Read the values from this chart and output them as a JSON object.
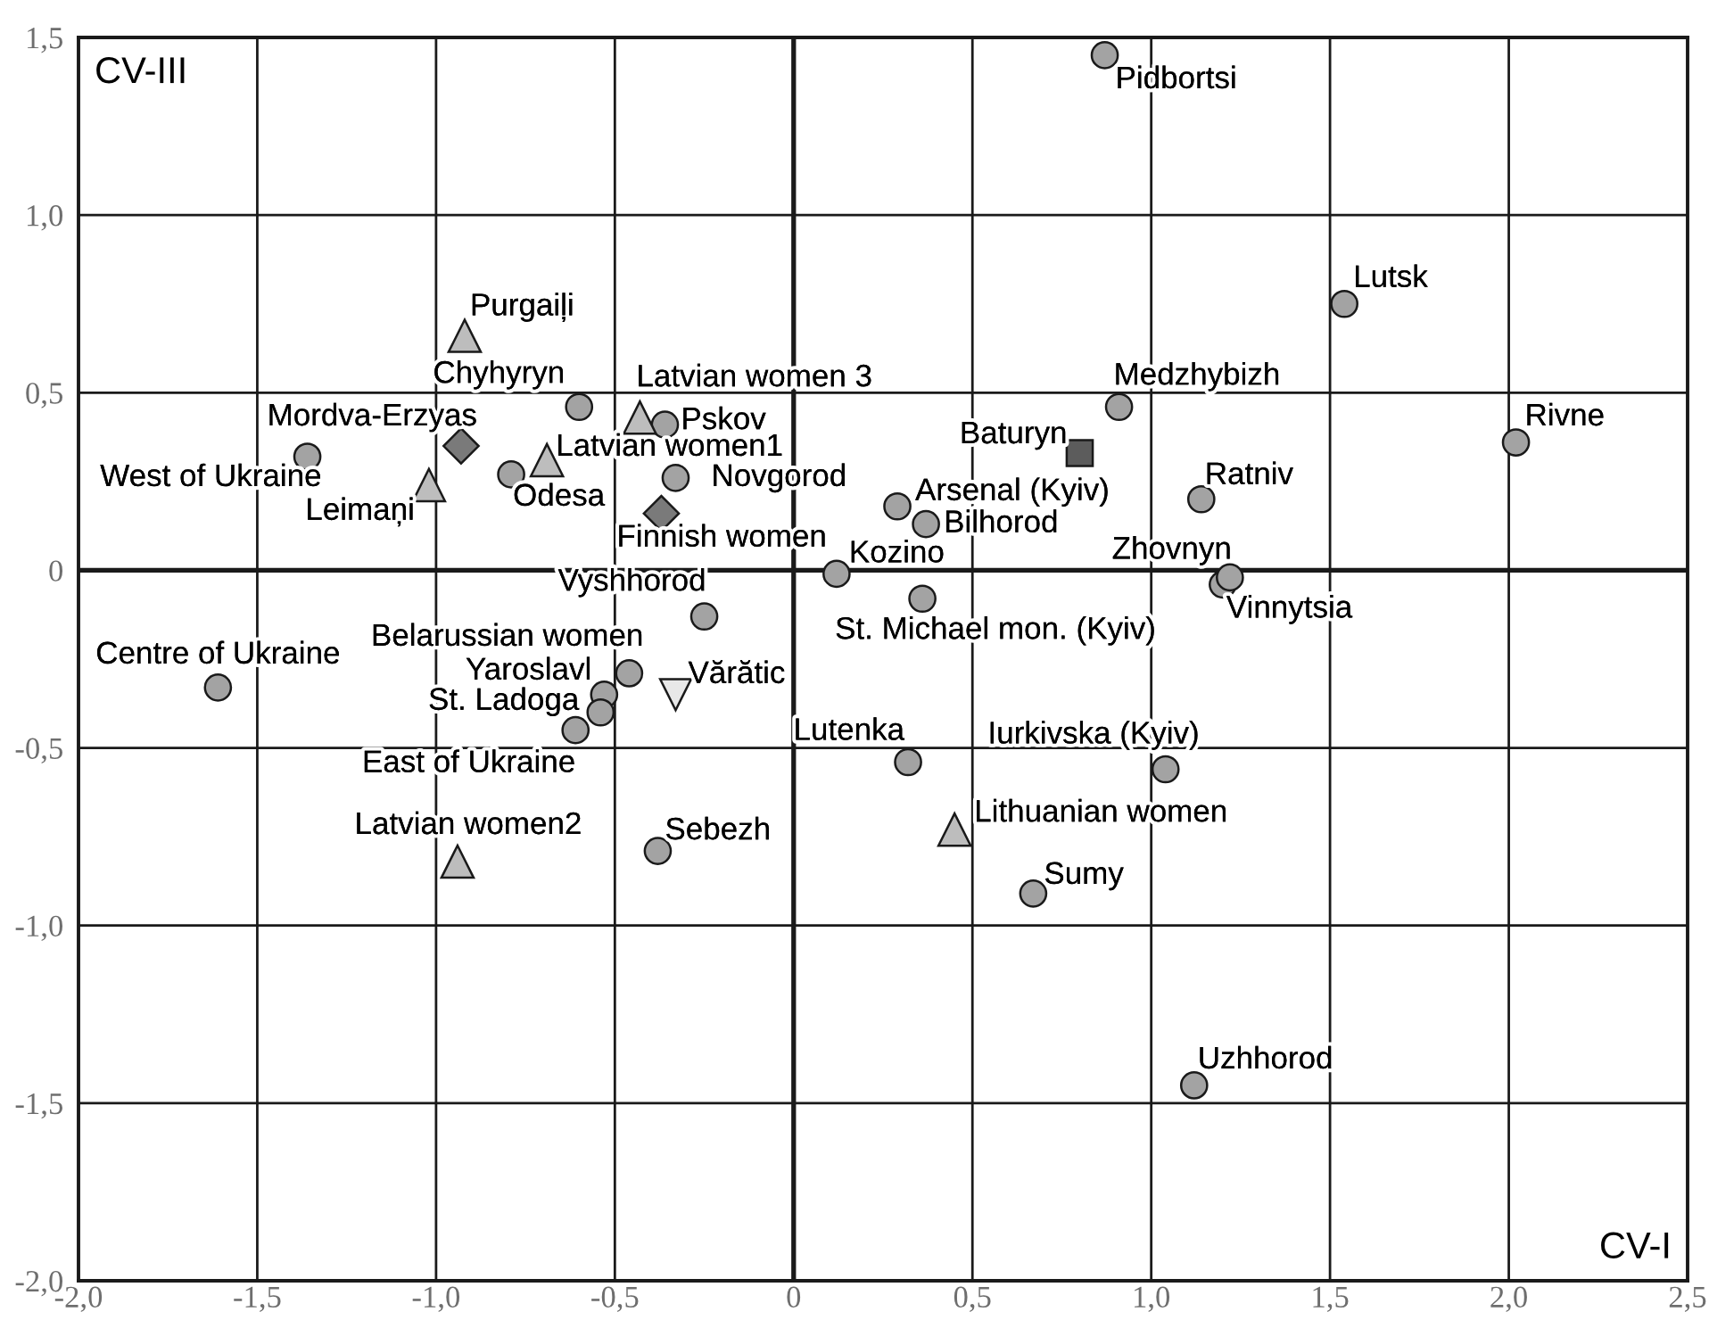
{
  "chart_data": {
    "type": "scatter",
    "xlabel": "CV-I",
    "ylabel": "CV-III",
    "xlim": [
      -2.0,
      2.5
    ],
    "ylim": [
      -2.0,
      1.5
    ],
    "xticks": [
      {
        "value": -2.0,
        "label": "-2,0"
      },
      {
        "value": -1.5,
        "label": "-1,5"
      },
      {
        "value": -1.0,
        "label": "-1,0"
      },
      {
        "value": -0.5,
        "label": "-0,5"
      },
      0,
      {
        "value": 0.5,
        "label": "0,5"
      },
      {
        "value": 1.0,
        "label": "1,0"
      },
      {
        "value": 1.5,
        "label": "1,5"
      },
      {
        "value": 2.0,
        "label": "2,0"
      },
      {
        "value": 2.5,
        "label": "2,5"
      }
    ],
    "yticks": [
      {
        "value": -2.0,
        "label": "-2,0"
      },
      {
        "value": -1.5,
        "label": "-1,5"
      },
      {
        "value": -1.0,
        "label": "-1,0"
      },
      {
        "value": -0.5,
        "label": "-0,5"
      },
      0,
      {
        "value": 0.5,
        "label": "0,5"
      },
      {
        "value": 1.0,
        "label": "1,0"
      },
      {
        "value": 1.5,
        "label": "1,5"
      }
    ],
    "grid": true,
    "series": [
      {
        "color": "#a3a3a3",
        "marker": "circle",
        "x": [
          -1.36,
          -1.61,
          -0.61,
          -0.6,
          -0.79,
          -0.36,
          -0.33,
          -0.25,
          -0.46,
          -0.53,
          -0.54,
          -0.38,
          0.12,
          0.29,
          0.37,
          0.36,
          0.32,
          0.67,
          0.87,
          0.91,
          1.04,
          1.12,
          1.14,
          1.2,
          1.22,
          1.54,
          2.02
        ],
        "values": [
          0.32,
          -0.33,
          -0.45,
          0.46,
          0.27,
          0.41,
          0.26,
          -0.13,
          -0.29,
          -0.35,
          -0.4,
          -0.79,
          -0.01,
          0.18,
          0.13,
          -0.08,
          -0.54,
          -0.91,
          1.45,
          0.46,
          -0.56,
          -1.45,
          0.2,
          -0.04,
          -0.02,
          0.75,
          0.36
        ],
        "value_labels": [
          "West of Ukraine",
          "Centre of Ukraine",
          "East of Ukraine",
          "Chyhyryn",
          "Odesa",
          "Pskov",
          "Novgorod",
          "Vyshhorod",
          "Belarussian women",
          "Yaroslavl",
          "St. Ladoga",
          "Sebezh",
          "Kozino",
          "Arsenal (Kyiv)",
          "Bilhorod",
          "St. Michael mon. (Kyiv)",
          "Lutenka",
          "Sumy",
          "Pidbortsi",
          "Medzhybizh",
          "Iurkivska (Kyiv)",
          "Uzhhorod",
          "Ratniv",
          "Vinnytsia",
          "Zhovnyn",
          "Lutsk",
          "Rivne"
        ]
      },
      {
        "color": "#bdbdbd",
        "marker": "triangle",
        "x": [
          -0.92,
          -1.02,
          -0.69,
          -0.43,
          -0.94,
          0.45
        ],
        "values": [
          0.66,
          0.24,
          0.31,
          0.43,
          -0.82,
          -0.73
        ],
        "value_labels": [
          "Purgaiļi",
          "Leimaņi",
          "Latvian women1",
          "Latvian women 3",
          "Latvian women2",
          "Lithuanian women"
        ]
      },
      {
        "color": "#7a7a7a",
        "marker": "diamond",
        "x": [
          -0.93,
          -0.37
        ],
        "values": [
          0.35,
          0.16
        ],
        "value_labels": [
          "Mordva-Erzyas",
          "Finnish women"
        ]
      },
      {
        "color": "#5c5c5c",
        "marker": "square",
        "x": [
          0.8
        ],
        "values": [
          0.33
        ],
        "value_labels": [
          "Baturyn"
        ]
      },
      {
        "color": "#e8e8e8",
        "marker": "triangle_down",
        "x": [
          -0.33
        ],
        "values": [
          -0.35
        ],
        "value_labels": [
          "Vărătic"
        ]
      }
    ]
  }
}
